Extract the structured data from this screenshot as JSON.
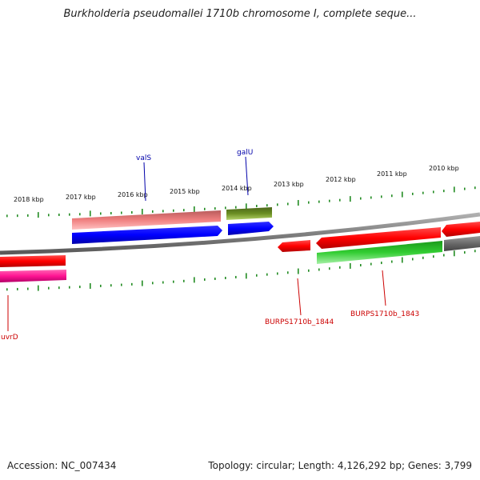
{
  "title": "Burkholderia pseudomallei 1710b chromosome I, complete seque...",
  "scale_labels": [
    "2018 kbp",
    "2017 kbp",
    "2016 kbp",
    "2015 kbp",
    "2014 kbp",
    "2013 kbp",
    "2012 kbp",
    "2011 kbp",
    "2010 kbp"
  ],
  "gene_labels": {
    "valS": "valS",
    "galU": "galU",
    "uvrD": "uvrD",
    "burps_1844": "BURPS1710b_1844",
    "burps_1843": "BURPS1710b_1843"
  },
  "footer": {
    "accession": "Accession: NC_007434",
    "summary": "Topology: circular; Length: 4,126,292 bp; Genes: 3,799"
  },
  "colors": {
    "backbone": "#808080",
    "tick": "#228b22",
    "gene_label_blue": "#0000aa",
    "gene_label_red": "#cc0000",
    "red": "#ff0000",
    "pink": "#ff1493",
    "salmon": "#f08080",
    "blue": "#0000ff",
    "olive": "#6b8e23",
    "green": "#32cd32",
    "gray": "#696969"
  }
}
